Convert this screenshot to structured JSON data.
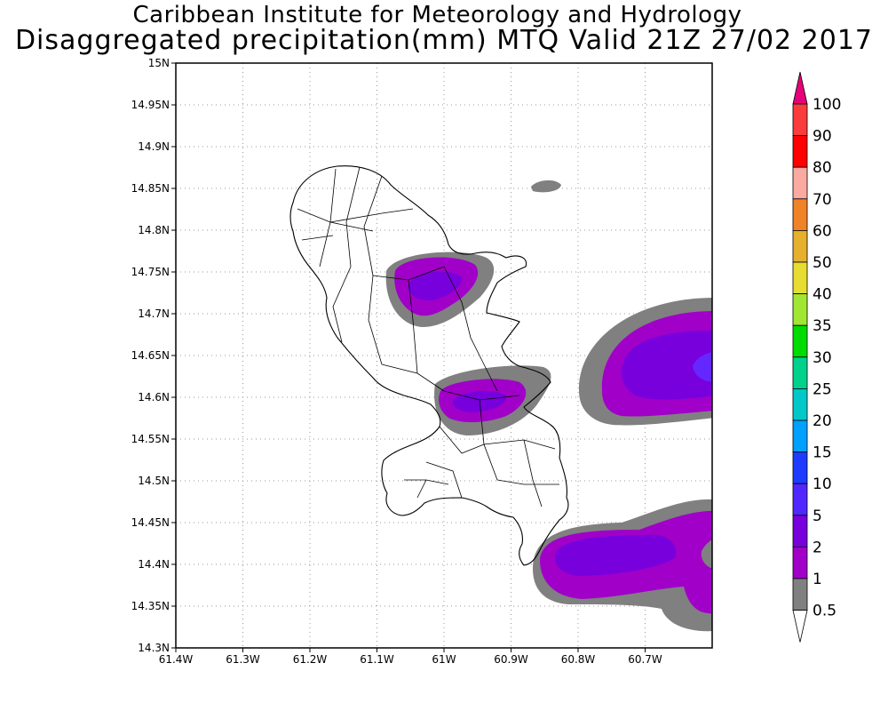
{
  "title": {
    "line1": "Caribbean Institute for Meteorology and Hydrology",
    "line2": "Disaggregated precipitation(mm) MTQ Valid 21Z 27/02 2017"
  },
  "map": {
    "region": "Martinique",
    "lon_range": [
      -61.4,
      -60.6
    ],
    "lat_range": [
      14.3,
      15.0
    ],
    "grid": "dotted",
    "x_ticks": [
      "61.4W",
      "61.3W",
      "61.2W",
      "61.1W",
      "61W",
      "60.9W",
      "60.8W",
      "60.7W"
    ],
    "y_ticks": [
      "14.3N",
      "14.35N",
      "14.4N",
      "14.45N",
      "14.5N",
      "14.55N",
      "14.6N",
      "14.65N",
      "14.7N",
      "14.75N",
      "14.8N",
      "14.85N",
      "14.9N",
      "14.95N",
      "15N"
    ],
    "colors": {
      "c05": "#808080",
      "c1": "#a000c8",
      "c2": "#7800dc",
      "c5": "#6428ff"
    }
  },
  "colorbar": {
    "labels": [
      "0.5",
      "1",
      "2",
      "5",
      "10",
      "15",
      "20",
      "25",
      "30",
      "35",
      "40",
      "50",
      "60",
      "70",
      "80",
      "90",
      "100"
    ],
    "colors": [
      "#808080",
      "#a000c8",
      "#7800dc",
      "#5028ff",
      "#1e3cff",
      "#00a0ff",
      "#00c8c8",
      "#00d28c",
      "#00dc00",
      "#a0e632",
      "#e6dc32",
      "#e6af2d",
      "#f08228",
      "#faaaa0",
      "#ff0000",
      "#fa3c3c",
      "#e6007a"
    ]
  }
}
